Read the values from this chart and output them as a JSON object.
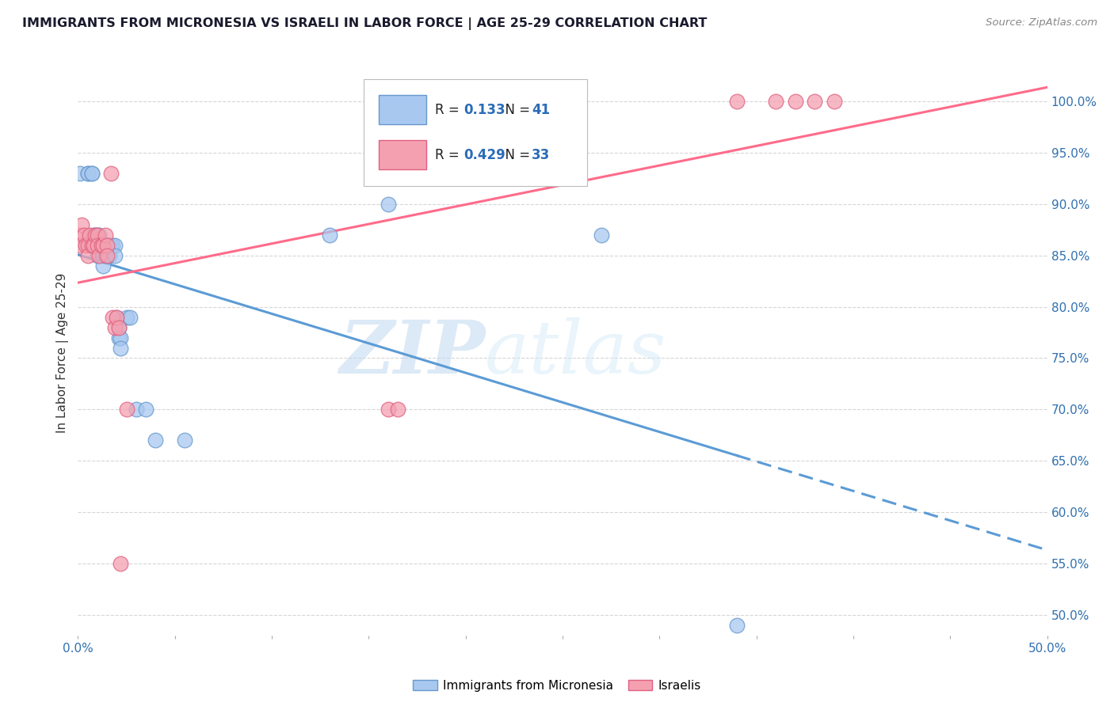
{
  "title": "IMMIGRANTS FROM MICRONESIA VS ISRAELI IN LABOR FORCE | AGE 25-29 CORRELATION CHART",
  "source": "Source: ZipAtlas.com",
  "ylabel": "In Labor Force | Age 25-29",
  "micronesia_color": "#A8C8F0",
  "israeli_color": "#F4A0B0",
  "micronesia_edge_color": "#6699CC",
  "israeli_edge_color": "#E06080",
  "micronesia_line_color": "#5B9BD5",
  "israeli_line_color": "#FF6B8A",
  "micronesia_R": 0.133,
  "micronesia_N": 41,
  "israeli_R": 0.429,
  "israeli_N": 33,
  "xlim": [
    0.0,
    0.5
  ],
  "ylim": [
    0.48,
    1.03
  ],
  "ytick_vals": [
    0.5,
    0.55,
    0.6,
    0.65,
    0.7,
    0.75,
    0.8,
    0.85,
    0.9,
    0.95,
    1.0
  ],
  "ytick_labels": [
    "50.0%",
    "55.0%",
    "60.0%",
    "65.0%",
    "70.0%",
    "75.0%",
    "80.0%",
    "85.0%",
    "90.0%",
    "95.0%",
    "100.0%"
  ],
  "xtick_vals": [
    0.0,
    0.05,
    0.1,
    0.15,
    0.2,
    0.25,
    0.3,
    0.35,
    0.4,
    0.45,
    0.5
  ],
  "xtick_labels_visible": {
    "0.0": "0.0%",
    "0.50": "50.0%"
  },
  "watermark_text": "ZIPatlas",
  "grid_color": "#CCCCCC",
  "tick_color": "#3070B0",
  "background_color": "#FFFFFF",
  "micronesia_x": [
    0.001,
    0.005,
    0.005,
    0.007,
    0.007,
    0.008,
    0.009,
    0.01,
    0.01,
    0.01,
    0.011,
    0.012,
    0.013,
    0.013,
    0.013,
    0.014,
    0.014,
    0.015,
    0.015,
    0.015,
    0.016,
    0.016,
    0.017,
    0.018,
    0.019,
    0.019,
    0.02,
    0.021,
    0.021,
    0.022,
    0.022,
    0.025,
    0.027,
    0.03,
    0.035,
    0.04,
    0.055,
    0.13,
    0.16,
    0.27,
    0.34
  ],
  "micronesia_y": [
    0.93,
    0.93,
    0.93,
    0.93,
    0.93,
    0.87,
    0.87,
    0.87,
    0.86,
    0.85,
    0.87,
    0.86,
    0.86,
    0.85,
    0.84,
    0.86,
    0.85,
    0.86,
    0.86,
    0.86,
    0.86,
    0.85,
    0.86,
    0.86,
    0.86,
    0.85,
    0.79,
    0.78,
    0.77,
    0.77,
    0.76,
    0.79,
    0.79,
    0.7,
    0.7,
    0.67,
    0.67,
    0.87,
    0.9,
    0.87,
    0.49
  ],
  "israeli_x": [
    0.001,
    0.001,
    0.002,
    0.003,
    0.004,
    0.005,
    0.005,
    0.006,
    0.007,
    0.008,
    0.009,
    0.01,
    0.01,
    0.011,
    0.012,
    0.013,
    0.014,
    0.015,
    0.015,
    0.017,
    0.018,
    0.019,
    0.02,
    0.021,
    0.022,
    0.025,
    0.16,
    0.165,
    0.34,
    0.36,
    0.37,
    0.38,
    0.39
  ],
  "israeli_y": [
    0.87,
    0.86,
    0.88,
    0.87,
    0.86,
    0.86,
    0.85,
    0.87,
    0.86,
    0.86,
    0.87,
    0.87,
    0.86,
    0.85,
    0.86,
    0.86,
    0.87,
    0.86,
    0.85,
    0.93,
    0.79,
    0.78,
    0.79,
    0.78,
    0.55,
    0.7,
    0.7,
    0.7,
    1.0,
    1.0,
    1.0,
    1.0,
    1.0
  ]
}
